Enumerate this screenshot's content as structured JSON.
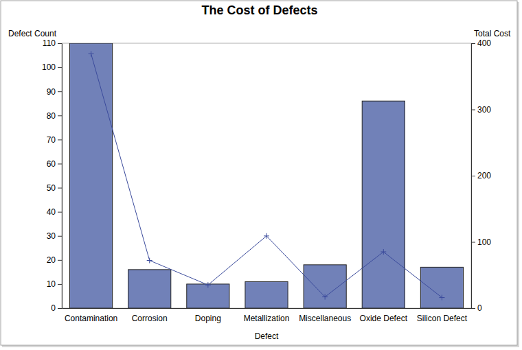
{
  "chart_data": {
    "type": "bar",
    "title": "The Cost of Defects",
    "xlabel": "Defect",
    "ylabel": "Defect Count",
    "y2label": "Total Cost",
    "categories": [
      "Contamination",
      "Corrosion",
      "Doping",
      "Metallization",
      "Miscellaneous",
      "Oxide Defect",
      "Silicon Defect"
    ],
    "series": [
      {
        "type": "bar",
        "color": "#7181b8",
        "values": [
          110,
          16,
          10,
          11,
          18,
          86,
          17
        ]
      },
      {
        "type": "line",
        "axis": "y2",
        "color": "#3b4b9c",
        "marker": "plus",
        "line_style": "solid",
        "values": [
          384,
          72,
          35,
          109,
          17,
          85,
          16
        ]
      }
    ],
    "ylim": [
      0,
      110
    ],
    "yticks": [
      0,
      10,
      20,
      30,
      40,
      50,
      60,
      70,
      80,
      90,
      100,
      110
    ],
    "y2lim": [
      0,
      400
    ],
    "y2ticks": [
      0,
      100,
      200,
      300,
      400
    ],
    "grid": false
  }
}
